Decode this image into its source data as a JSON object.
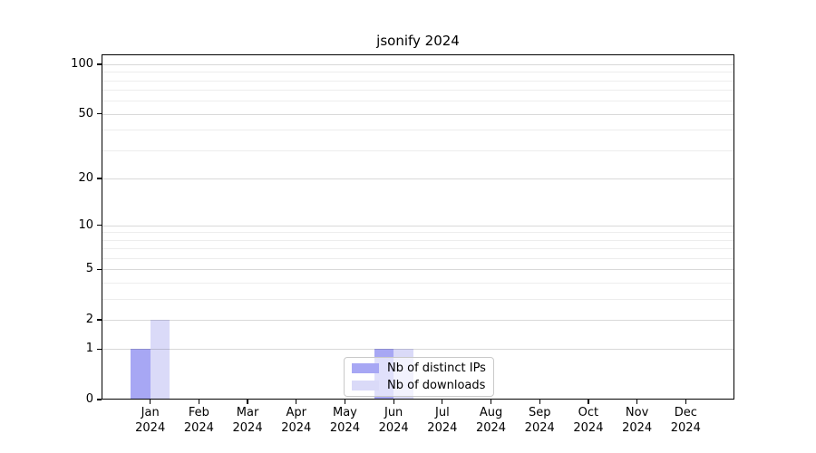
{
  "figure": {
    "background": "#ffffff"
  },
  "chart_data": {
    "type": "bar",
    "title": "jsonify 2024",
    "categories": [
      "Jan 2024",
      "Feb 2024",
      "Mar 2024",
      "Apr 2024",
      "May 2024",
      "Jun 2024",
      "Jul 2024",
      "Aug 2024",
      "Sep 2024",
      "Oct 2024",
      "Nov 2024",
      "Dec 2024"
    ],
    "series": [
      {
        "name": "Nb of distinct IPs",
        "color": "#a7a7f4",
        "values": [
          1,
          0,
          0,
          0,
          0,
          1,
          0,
          0,
          0,
          0,
          0,
          0
        ]
      },
      {
        "name": "Nb of downloads",
        "color": "#dadaf8",
        "values": [
          2,
          0,
          0,
          0,
          0,
          1,
          0,
          0,
          0,
          0,
          0,
          0
        ]
      }
    ],
    "xlabel": "",
    "ylabel": "",
    "yscale": "log(1+x)",
    "yticks": [
      0,
      1,
      2,
      5,
      10,
      20,
      50,
      100
    ],
    "yticks_minor": [
      3,
      4,
      6,
      7,
      8,
      9,
      30,
      40,
      60,
      70,
      80,
      90
    ],
    "ylim": [
      0,
      115
    ],
    "grid": "horizontal",
    "legend": {
      "position": "lower center",
      "items": [
        "Nb of distinct IPs",
        "Nb of downloads"
      ]
    }
  }
}
